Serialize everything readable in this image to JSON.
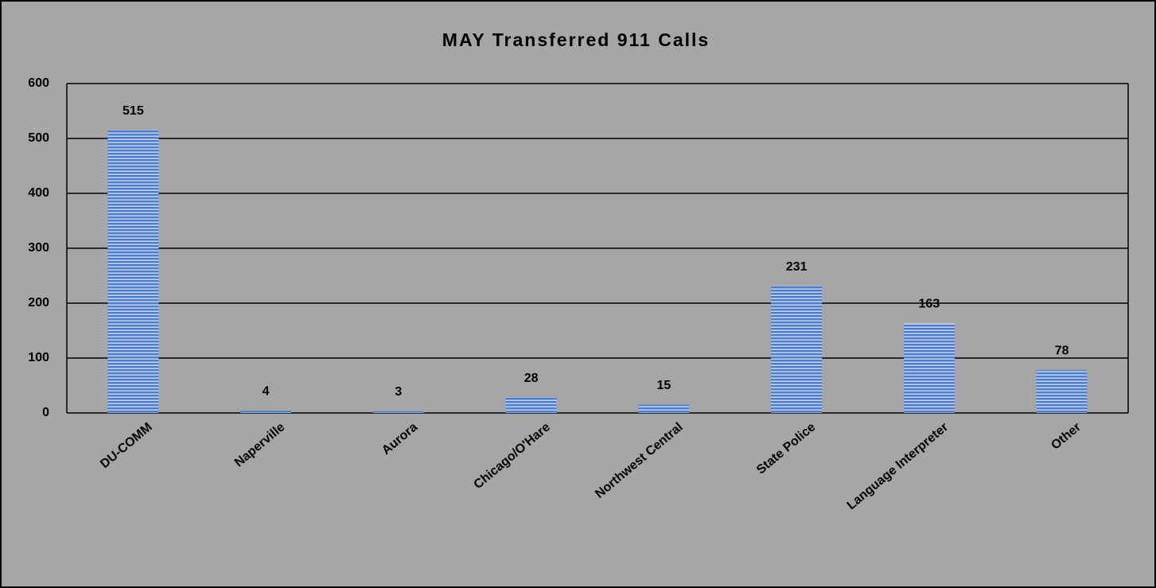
{
  "chart_data": {
    "type": "bar",
    "title": "MAY Transferred 911 Calls",
    "categories": [
      "DU-COMM",
      "Naperville",
      "Aurora",
      "Chicago/O'Hare",
      "Northwest Central",
      "State Police",
      "Language Interpreter",
      "Other"
    ],
    "values": [
      515,
      4,
      3,
      28,
      15,
      231,
      163,
      78
    ],
    "color": "#4a7bd6",
    "ylim": [
      0,
      600
    ],
    "yticks": [
      0,
      100,
      200,
      300,
      400,
      500,
      600
    ],
    "grid": true
  }
}
